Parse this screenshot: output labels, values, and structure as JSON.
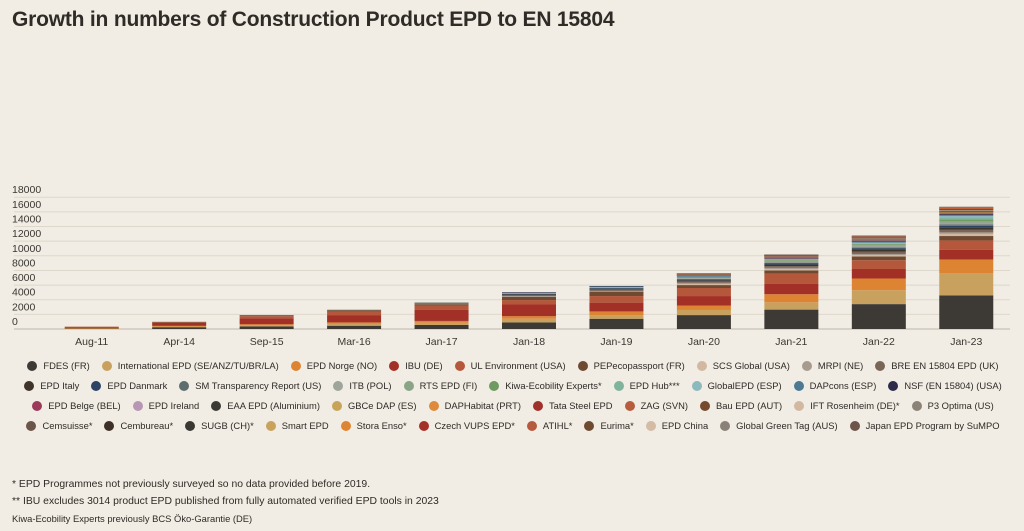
{
  "title": "Growth in numbers of  Construction Product EPD to EN 15804",
  "chart_data": {
    "type": "bar",
    "stacked": true,
    "title": "Growth in numbers of  Construction Product EPD to EN 15804",
    "xlabel": "",
    "ylabel": "",
    "ylim": [
      0,
      18000
    ],
    "yticks": [
      0,
      2000,
      4000,
      6000,
      8000,
      10000,
      12000,
      14000,
      16000,
      18000
    ],
    "grid": true,
    "legend_position": "bottom",
    "categories": [
      "Aug-11",
      "Apr-14",
      "Sep-15",
      "Mar-16",
      "Jan-17",
      "Jan-18",
      "Jan-19",
      "Jan-20",
      "Jan-21",
      "Jan-22",
      "Jan-23"
    ],
    "series": [
      {
        "name": "FDES (FR)",
        "color": "#3d3a35",
        "values": [
          100,
          250,
          350,
          450,
          550,
          900,
          1400,
          1900,
          2650,
          3400,
          4600
        ]
      },
      {
        "name": "International EPD (SE/ANZ/TU/BR/LA)",
        "color": "#c9a15e",
        "values": [
          30,
          100,
          150,
          250,
          300,
          500,
          500,
          700,
          1000,
          1900,
          3000
        ]
      },
      {
        "name": "EPD Norge (NO)",
        "color": "#dd8433",
        "values": [
          20,
          80,
          150,
          200,
          250,
          350,
          500,
          600,
          1100,
          1600,
          1900
        ]
      },
      {
        "name": "IBU (DE)",
        "color": "#a33027",
        "values": [
          120,
          400,
          800,
          1000,
          1500,
          1600,
          1200,
          1300,
          1400,
          1300,
          1300
        ]
      },
      {
        "name": "UL Environment (USA)",
        "color": "#b5573a",
        "values": [
          50,
          100,
          300,
          500,
          600,
          600,
          900,
          1100,
          1400,
          1200,
          1300
        ]
      },
      {
        "name": "PEPecopassport (FR)",
        "color": "#6e4a33",
        "values": [
          0,
          50,
          100,
          150,
          200,
          450,
          600,
          400,
          450,
          500,
          600
        ]
      },
      {
        "name": "SCS Global (USA)",
        "color": "#d2b8a0",
        "values": [
          0,
          0,
          0,
          0,
          0,
          0,
          0,
          150,
          200,
          200,
          300
        ]
      },
      {
        "name": "MRPI (NE)",
        "color": "#a79b90",
        "values": [
          0,
          0,
          0,
          0,
          50,
          100,
          100,
          150,
          150,
          150,
          200
        ]
      },
      {
        "name": "BRE EN 15804 EPD (UK)",
        "color": "#7a6658",
        "values": [
          0,
          0,
          50,
          80,
          100,
          150,
          150,
          200,
          250,
          300,
          350
        ]
      },
      {
        "name": "EPD Italy",
        "color": "#3f342a",
        "values": [
          0,
          0,
          0,
          0,
          50,
          80,
          100,
          150,
          200,
          250,
          300
        ]
      },
      {
        "name": "EPD Danmark",
        "color": "#2e4466",
        "values": [
          0,
          0,
          0,
          0,
          0,
          50,
          80,
          100,
          150,
          200,
          250
        ]
      },
      {
        "name": "SM Transparency Report (US)",
        "color": "#5e6e70",
        "values": [
          0,
          0,
          0,
          0,
          0,
          40,
          80,
          100,
          120,
          150,
          200
        ]
      },
      {
        "name": "ITB (POL)",
        "color": "#9fa59a",
        "values": [
          0,
          0,
          0,
          0,
          50,
          80,
          100,
          120,
          150,
          200,
          250
        ]
      },
      {
        "name": "RTS EPD (FI)",
        "color": "#8aa585",
        "values": [
          0,
          0,
          0,
          0,
          0,
          30,
          50,
          80,
          100,
          150,
          200
        ]
      },
      {
        "name": "Kiwa-Ecobility Experts*",
        "color": "#6f9a62",
        "values": [
          0,
          0,
          0,
          0,
          0,
          0,
          0,
          60,
          100,
          150,
          200
        ]
      },
      {
        "name": "EPD Hub***",
        "color": "#7fb39b",
        "values": [
          0,
          0,
          0,
          0,
          0,
          0,
          0,
          0,
          0,
          0,
          300
        ]
      },
      {
        "name": "GlobalEPD (ESP)",
        "color": "#8cb9bd",
        "values": [
          0,
          0,
          0,
          0,
          0,
          30,
          50,
          80,
          100,
          150,
          200
        ]
      },
      {
        "name": "DAPcons (ESP)",
        "color": "#4d7a92",
        "values": [
          0,
          0,
          0,
          0,
          0,
          30,
          40,
          60,
          80,
          100,
          120
        ]
      },
      {
        "name": "NSF (EN 15804) (USA)",
        "color": "#2f2a4a",
        "values": [
          0,
          0,
          0,
          0,
          0,
          20,
          30,
          50,
          80,
          100,
          120
        ]
      },
      {
        "name": "EPD Belge (BEL)",
        "color": "#9b3a5b",
        "values": [
          0,
          0,
          0,
          0,
          0,
          0,
          0,
          30,
          50,
          80,
          100
        ]
      },
      {
        "name": "EPD Ireland",
        "color": "#b897b4",
        "values": [
          0,
          0,
          0,
          0,
          0,
          0,
          0,
          20,
          40,
          60,
          80
        ]
      },
      {
        "name": "EAA EPD (Aluminium)",
        "color": "#3b3b36",
        "values": [
          0,
          0,
          0,
          0,
          0,
          0,
          0,
          20,
          30,
          40,
          50
        ]
      },
      {
        "name": "GBCe DAP (ES)",
        "color": "#c8a458",
        "values": [
          0,
          0,
          0,
          0,
          0,
          0,
          0,
          20,
          30,
          40,
          50
        ]
      },
      {
        "name": "DAPHabitat (PRT)",
        "color": "#de8a3c",
        "values": [
          0,
          0,
          0,
          0,
          0,
          0,
          0,
          20,
          30,
          40,
          50
        ]
      },
      {
        "name": "Tata Steel EPD",
        "color": "#a0302a",
        "values": [
          0,
          0,
          0,
          0,
          0,
          0,
          0,
          20,
          30,
          40,
          50
        ]
      },
      {
        "name": "ZAG (SVN)",
        "color": "#b75d3e",
        "values": [
          0,
          0,
          0,
          0,
          0,
          0,
          0,
          20,
          30,
          40,
          50
        ]
      },
      {
        "name": "Bau EPD (AUT)",
        "color": "#764a2d",
        "values": [
          0,
          0,
          0,
          0,
          0,
          0,
          0,
          20,
          30,
          40,
          50
        ]
      },
      {
        "name": "IFT Rosenheim (DE)*",
        "color": "#d3b8a1",
        "values": [
          0,
          0,
          0,
          0,
          0,
          0,
          0,
          20,
          30,
          40,
          50
        ]
      },
      {
        "name": "P3 Optima (US)",
        "color": "#8b8378",
        "values": [
          0,
          0,
          0,
          0,
          0,
          0,
          0,
          20,
          30,
          40,
          50
        ]
      },
      {
        "name": "Cemsuisse*",
        "color": "#6b5548",
        "values": [
          0,
          0,
          0,
          0,
          0,
          0,
          0,
          20,
          30,
          40,
          50
        ]
      },
      {
        "name": "Cembureau*",
        "color": "#3e3026",
        "values": [
          0,
          0,
          0,
          0,
          0,
          0,
          0,
          20,
          30,
          40,
          50
        ]
      },
      {
        "name": "SUGB (CH)*",
        "color": "#3a3833",
        "values": [
          0,
          0,
          0,
          0,
          0,
          0,
          0,
          10,
          20,
          30,
          40
        ]
      },
      {
        "name": "Smart EPD",
        "color": "#c9a25d",
        "values": [
          0,
          0,
          0,
          0,
          0,
          0,
          0,
          0,
          10,
          20,
          40
        ]
      },
      {
        "name": "Stora Enso*",
        "color": "#dd8532",
        "values": [
          0,
          0,
          0,
          0,
          0,
          0,
          0,
          10,
          20,
          30,
          40
        ]
      },
      {
        "name": "Czech VUPS EPD*",
        "color": "#a43128",
        "values": [
          0,
          0,
          0,
          0,
          0,
          0,
          0,
          10,
          20,
          30,
          40
        ]
      },
      {
        "name": "ATIHL*",
        "color": "#b55a3c",
        "values": [
          0,
          0,
          0,
          0,
          0,
          0,
          0,
          10,
          20,
          30,
          40
        ]
      },
      {
        "name": "Eurima*",
        "color": "#6e4a31",
        "values": [
          0,
          0,
          0,
          0,
          0,
          0,
          0,
          10,
          20,
          30,
          40
        ]
      },
      {
        "name": "EPD China",
        "color": "#d4bba4",
        "values": [
          0,
          0,
          0,
          0,
          0,
          0,
          0,
          0,
          10,
          20,
          30
        ]
      },
      {
        "name": "Global Green Tag (AUS)",
        "color": "#8a8279",
        "values": [
          0,
          0,
          0,
          0,
          0,
          0,
          0,
          0,
          10,
          20,
          30
        ]
      },
      {
        "name": "Japan EPD Program by SuMPO",
        "color": "#6d5649",
        "values": [
          0,
          0,
          0,
          0,
          0,
          0,
          0,
          0,
          0,
          10,
          30
        ]
      }
    ]
  },
  "notes": [
    "* EPD Programmes not previously surveyed so no data provided before 2019.",
    "** IBU excludes 3014 product EPD published from fully automated verified EPD tools in 2023"
  ],
  "note_small": "Kiwa-Ecobility Experts previously BCS Öko-Garantie (DE)"
}
